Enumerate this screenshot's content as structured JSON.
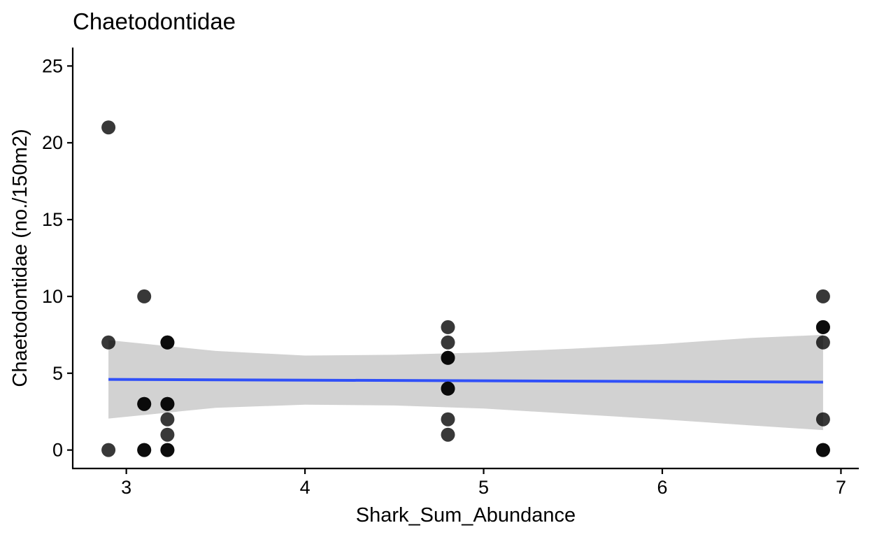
{
  "chart_data": {
    "type": "scatter",
    "title": "Chaetodontidae",
    "xlabel": "Shark_Sum_Abundance",
    "ylabel": "Chaetodontidae (no./150m2)",
    "xlim": [
      2.7,
      7.1
    ],
    "ylim": [
      -1.2,
      26.2
    ],
    "xticks": [
      3,
      4,
      5,
      6,
      7
    ],
    "yticks": [
      0,
      5,
      10,
      15,
      20,
      25
    ],
    "grid": false,
    "legend": "none",
    "points": [
      {
        "x": 2.9,
        "y": 21
      },
      {
        "x": 2.9,
        "y": 7
      },
      {
        "x": 2.9,
        "y": 0
      },
      {
        "x": 3.1,
        "y": 10
      },
      {
        "x": 3.1,
        "y": 3
      },
      {
        "x": 3.1,
        "y": 3
      },
      {
        "x": 3.1,
        "y": 0
      },
      {
        "x": 3.1,
        "y": 0
      },
      {
        "x": 3.23,
        "y": 7
      },
      {
        "x": 3.23,
        "y": 7
      },
      {
        "x": 3.23,
        "y": 3
      },
      {
        "x": 3.23,
        "y": 3
      },
      {
        "x": 3.23,
        "y": 2
      },
      {
        "x": 3.23,
        "y": 1
      },
      {
        "x": 3.23,
        "y": 0
      },
      {
        "x": 3.23,
        "y": 0
      },
      {
        "x": 4.8,
        "y": 8
      },
      {
        "x": 4.8,
        "y": 7
      },
      {
        "x": 4.8,
        "y": 6
      },
      {
        "x": 4.8,
        "y": 6
      },
      {
        "x": 4.8,
        "y": 4
      },
      {
        "x": 4.8,
        "y": 4
      },
      {
        "x": 4.8,
        "y": 2
      },
      {
        "x": 4.8,
        "y": 1
      },
      {
        "x": 6.9,
        "y": 10
      },
      {
        "x": 6.9,
        "y": 8
      },
      {
        "x": 6.9,
        "y": 8
      },
      {
        "x": 6.9,
        "y": 7
      },
      {
        "x": 6.9,
        "y": 2
      },
      {
        "x": 6.9,
        "y": 0
      },
      {
        "x": 6.9,
        "y": 0
      }
    ],
    "fit_line": {
      "method": "linear",
      "x": [
        2.9,
        6.9
      ],
      "y": [
        4.6,
        4.42
      ],
      "color": "#3050f8"
    },
    "confidence_band": {
      "x": [
        2.9,
        3.5,
        4.0,
        4.5,
        5.0,
        5.5,
        6.0,
        6.5,
        6.9
      ],
      "lower": [
        2.05,
        2.75,
        2.95,
        2.9,
        2.7,
        2.35,
        2.0,
        1.6,
        1.3
      ],
      "upper": [
        7.15,
        6.45,
        6.15,
        6.2,
        6.35,
        6.6,
        6.9,
        7.3,
        7.5
      ],
      "color": "#d2d2d2"
    },
    "point_color": "#000000"
  }
}
